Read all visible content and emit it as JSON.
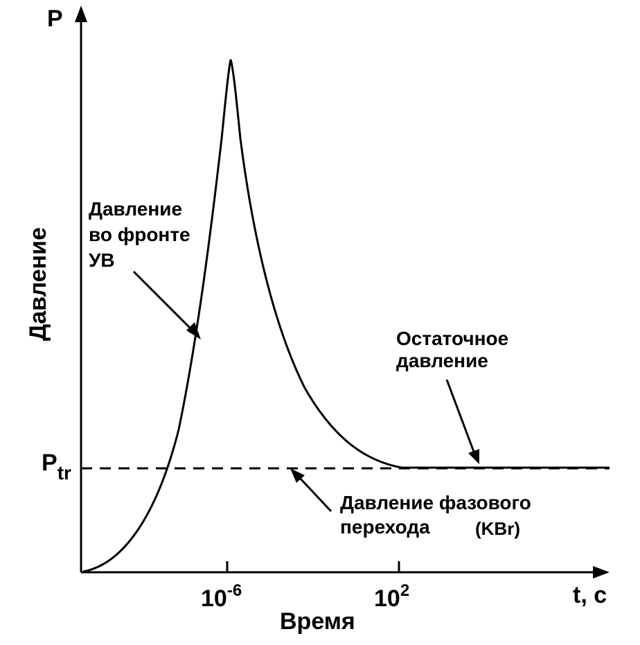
{
  "chart_data": {
    "type": "line",
    "title": "",
    "ylabel": "Давление",
    "xlabel": "Время",
    "y_axis_symbol": "P",
    "x_axis_symbol": "t, c",
    "x_scale": "log",
    "x_ticks": [
      {
        "base": "10",
        "exp": "-6",
        "value": 1e-06
      },
      {
        "base": "10",
        "exp": "2",
        "value": 100
      }
    ],
    "pressure_threshold": {
      "main": "P",
      "sub": "tr"
    },
    "series": [
      {
        "name": "",
        "style": "solid",
        "color": "#000000",
        "shape": "sharp peak near t = 10^-6, exponential decay to a residual plateau at P_tr from about t = 10^2"
      },
      {
        "name": "",
        "style": "dashed",
        "color": "#000000",
        "shape": "horizontal line at P = P_tr"
      }
    ],
    "annotations": {
      "front_pressure": [
        "Давление",
        "во фронте",
        "УВ"
      ],
      "residual_pressure": [
        "Остаточное",
        "давление"
      ],
      "phase_transition": [
        "Давление фазового",
        "перехода"
      ],
      "phase_material": "(KBr)"
    },
    "grid": false,
    "legend": "none"
  }
}
